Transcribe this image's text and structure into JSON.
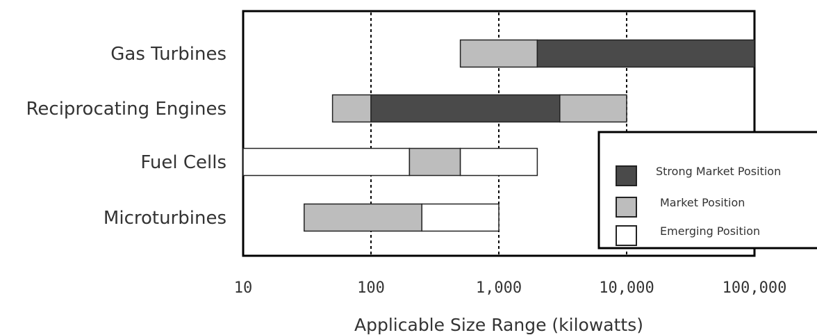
{
  "chart_data": {
    "type": "bar",
    "orientation": "horizontal-range",
    "x_scale": "log",
    "xlim": [
      10,
      100000
    ],
    "xlabel": "Applicable Size Range (kilowatts)",
    "x_ticks": [
      {
        "value": 10,
        "label": "10"
      },
      {
        "value": 100,
        "label": "100"
      },
      {
        "value": 1000,
        "label": "1,000"
      },
      {
        "value": 10000,
        "label": "10,000"
      },
      {
        "value": 100000,
        "label": "100,000"
      }
    ],
    "gridlines_at": [
      100,
      1000,
      10000
    ],
    "grid_style": "dotted vertical",
    "categories": [
      "Gas Turbines",
      "Reciprocating Engines",
      "Fuel Cells",
      "Microturbines"
    ],
    "legend": {
      "position": "right",
      "items": [
        {
          "key": "strong",
          "label": "Strong Market Position",
          "color": "#4a4a4a"
        },
        {
          "key": "market",
          "label": "Market Position",
          "color": "#bdbdbd"
        },
        {
          "key": "emerging",
          "label": "Emerging Position",
          "color": "#ffffff"
        }
      ]
    },
    "series": [
      {
        "category": "Gas Turbines",
        "segments": [
          {
            "position": "market",
            "from": 500,
            "to": 2000
          },
          {
            "position": "strong",
            "from": 2000,
            "to": 100000
          }
        ]
      },
      {
        "category": "Reciprocating Engines",
        "segments": [
          {
            "position": "market",
            "from": 50,
            "to": 100
          },
          {
            "position": "strong",
            "from": 100,
            "to": 3000
          },
          {
            "position": "market",
            "from": 3000,
            "to": 10000
          }
        ]
      },
      {
        "category": "Fuel Cells",
        "segments": [
          {
            "position": "emerging",
            "from": 10,
            "to": 200
          },
          {
            "position": "market",
            "from": 200,
            "to": 500
          },
          {
            "position": "emerging",
            "from": 500,
            "to": 2000
          }
        ]
      },
      {
        "category": "Microturbines",
        "segments": [
          {
            "position": "market",
            "from": 30,
            "to": 250
          },
          {
            "position": "emerging",
            "from": 250,
            "to": 1000
          }
        ]
      }
    ]
  }
}
